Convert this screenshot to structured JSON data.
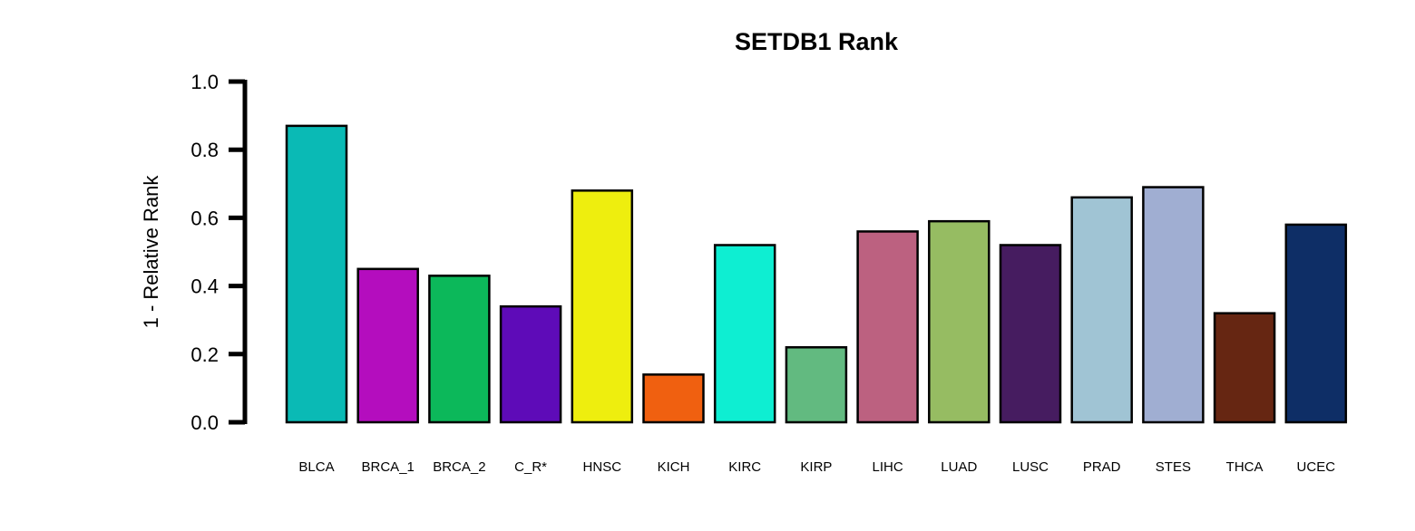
{
  "chart_data": {
    "type": "bar",
    "title": "SETDB1 Rank",
    "ylabel": "1 - Relative Rank",
    "xlabel": "",
    "ylim": [
      0,
      1.0
    ],
    "yticks": [
      "0.0",
      "0.2",
      "0.4",
      "0.6",
      "0.8",
      "1.0"
    ],
    "ytick_values": [
      0.0,
      0.2,
      0.4,
      0.6,
      0.8,
      1.0
    ],
    "categories": [
      "BLCA",
      "BRCA_1",
      "BRCA_2",
      "C_R*",
      "HNSC",
      "KICH",
      "KIRC",
      "KIRP",
      "LIHC",
      "LUAD",
      "LUSC",
      "PRAD",
      "STES",
      "THCA",
      "UCEC"
    ],
    "values": [
      0.87,
      0.45,
      0.43,
      0.34,
      0.68,
      0.14,
      0.52,
      0.22,
      0.56,
      0.59,
      0.52,
      0.66,
      0.69,
      0.32,
      0.58
    ],
    "colors": [
      "#0ABAB5",
      "#B40DBE",
      "#0CB85A",
      "#5E0BB8",
      "#EEEE0E",
      "#F06010",
      "#0EEED2",
      "#62BA80",
      "#BC6180",
      "#96BC62",
      "#461C60",
      "#A0C4D4",
      "#A0AED2",
      "#662612",
      "#0E2E66"
    ],
    "grid": false,
    "legend": "none"
  }
}
